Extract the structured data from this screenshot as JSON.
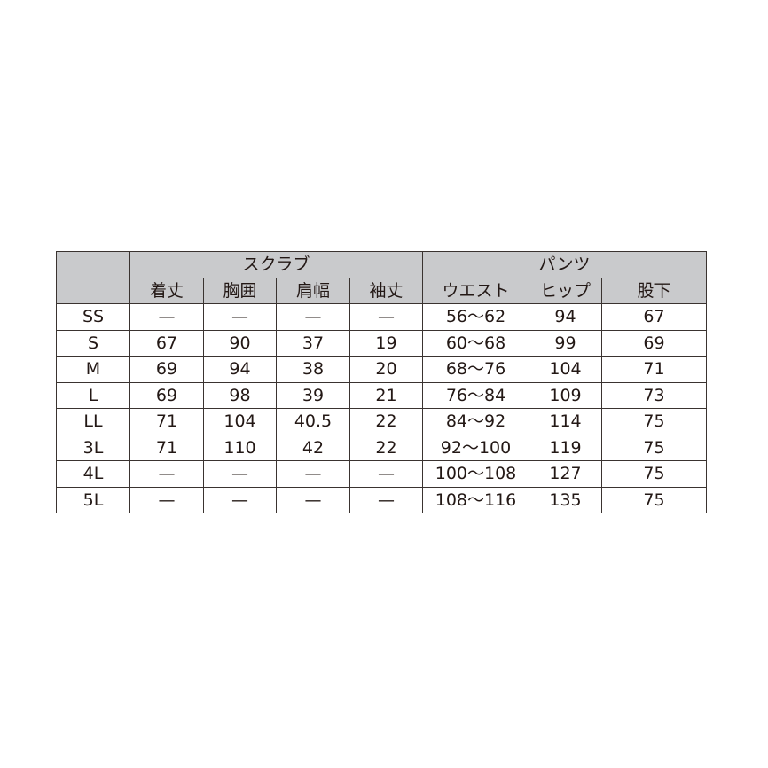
{
  "table": {
    "groups": [
      "スクラブ",
      "パンツ"
    ],
    "columns": [
      "着丈",
      "胸囲",
      "肩幅",
      "袖丈",
      "ウエスト",
      "ヒップ",
      "股下"
    ],
    "rows": [
      {
        "size": "SS",
        "values": [
          "—",
          "—",
          "—",
          "—",
          "56〜62",
          "94",
          "67"
        ]
      },
      {
        "size": "S",
        "values": [
          "67",
          "90",
          "37",
          "19",
          "60〜68",
          "99",
          "69"
        ]
      },
      {
        "size": "M",
        "values": [
          "69",
          "94",
          "38",
          "20",
          "68〜76",
          "104",
          "71"
        ]
      },
      {
        "size": "L",
        "values": [
          "69",
          "98",
          "39",
          "21",
          "76〜84",
          "109",
          "73"
        ]
      },
      {
        "size": "LL",
        "values": [
          "71",
          "104",
          "40.5",
          "22",
          "84〜92",
          "114",
          "75"
        ]
      },
      {
        "size": "3L",
        "values": [
          "71",
          "110",
          "42",
          "22",
          "92〜100",
          "119",
          "75"
        ]
      },
      {
        "size": "4L",
        "values": [
          "—",
          "—",
          "—",
          "—",
          "100〜108",
          "127",
          "75"
        ]
      },
      {
        "size": "5L",
        "values": [
          "—",
          "—",
          "—",
          "—",
          "108〜116",
          "135",
          "75"
        ]
      }
    ]
  },
  "colors": {
    "header_bg": "#c9cacc",
    "border": "#3a3330",
    "text": "#231815"
  }
}
